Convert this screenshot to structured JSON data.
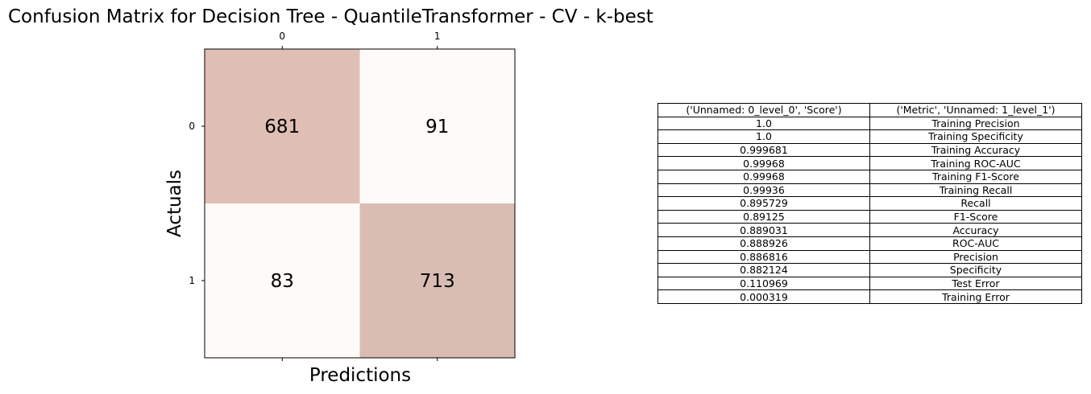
{
  "chart_data": [
    {
      "type": "heatmap",
      "title": "Confusion Matrix for Decision Tree - QuantileTransformer - CV - k-best",
      "xlabel": "Predictions",
      "ylabel": "Actuals",
      "x_tick_labels": [
        "0",
        "1"
      ],
      "y_tick_labels": [
        "0",
        "1"
      ],
      "x_ticks_position": "top",
      "matrix": [
        [
          681,
          91
        ],
        [
          83,
          713
        ]
      ],
      "colors": {
        "diagonal": "#dfbfb4",
        "off_diagonal": "#fefaf7",
        "high_value": "#d9bdb3"
      },
      "grid": false
    },
    {
      "type": "table",
      "columns": [
        "('Unnamed: 0_level_0', 'Score')",
        "('Metric', 'Unnamed: 1_level_1')"
      ],
      "rows": [
        [
          "1.0",
          "Training Precision"
        ],
        [
          "1.0",
          "Training Specificity"
        ],
        [
          "0.999681",
          "Training Accuracy"
        ],
        [
          "0.99968",
          "Training ROC-AUC"
        ],
        [
          "0.99968",
          "Training F1-Score"
        ],
        [
          "0.99936",
          "Training Recall"
        ],
        [
          "0.895729",
          "Recall"
        ],
        [
          "0.89125",
          "F1-Score"
        ],
        [
          "0.889031",
          "Accuracy"
        ],
        [
          "0.888926",
          "ROC-AUC"
        ],
        [
          "0.886816",
          "Precision"
        ],
        [
          "0.882124",
          "Specificity"
        ],
        [
          "0.110969",
          "Test Error"
        ],
        [
          "0.000319",
          "Training Error"
        ]
      ]
    }
  ]
}
